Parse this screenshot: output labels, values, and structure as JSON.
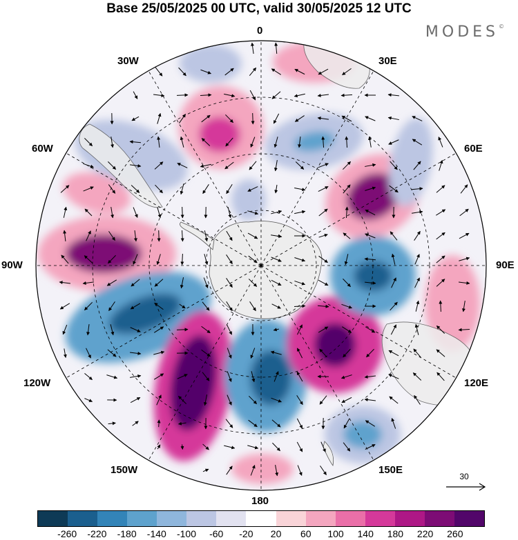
{
  "title": "Base 25/05/2025 00 UTC, valid 30/05/2025 12 UTC",
  "brand": "MODES",
  "brand_mark": "©",
  "longitude_labels": {
    "lon_0": "0",
    "lon_30e": "30E",
    "lon_60e": "60E",
    "lon_90e": "90E",
    "lon_120e": "120E",
    "lon_150e": "150E",
    "lon_180": "180",
    "lon_150w": "150W",
    "lon_120w": "120W",
    "lon_90w": "90W",
    "lon_60w": "60W",
    "lon_30w": "30W"
  },
  "vector_scale_label": "30",
  "colorbar": {
    "ticks": [
      "-260",
      "-220",
      "-180",
      "-140",
      "-100",
      "-60",
      "-20",
      "20",
      "60",
      "100",
      "140",
      "180",
      "220",
      "260"
    ],
    "colors": [
      "#0e3a56",
      "#1b5f8e",
      "#3384b8",
      "#5ea2cd",
      "#8fb6dc",
      "#bcc6e3",
      "#e2e2f0",
      "#ffffff",
      "#f9d4d8",
      "#f4a6bf",
      "#ea6fa8",
      "#d5399a",
      "#ae1886",
      "#7d0c75",
      "#52066a"
    ]
  },
  "legend": {
    "colors": {
      "land": "#ededed",
      "coast": "#555555",
      "grid": "#000000",
      "arrow": "#000000"
    }
  }
}
